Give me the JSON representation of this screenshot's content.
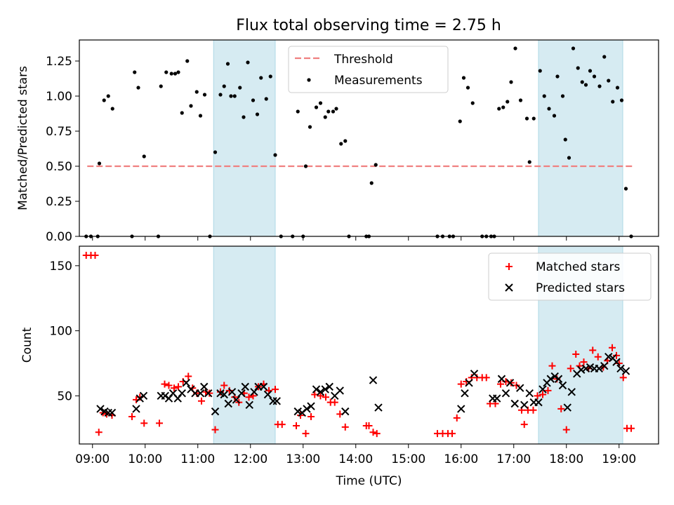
{
  "title": "Flux total observing time = 2.75 h",
  "chart_data": [
    {
      "type": "scatter",
      "ylabel": "Matched/Predicted stars",
      "xlim": [
        8.75,
        19.75
      ],
      "ylim": [
        0.0,
        1.4
      ],
      "yticks": [
        0.0,
        0.25,
        0.5,
        0.75,
        1.0,
        1.25
      ],
      "ytick_labels": [
        "0.00",
        "0.25",
        "0.50",
        "0.75",
        "1.00",
        "1.25"
      ],
      "grid": false,
      "legend_position": "upper-center",
      "shaded_intervals": [
        [
          11.3,
          12.47
        ],
        [
          17.47,
          19.07
        ]
      ],
      "threshold": {
        "name": "Threshold",
        "value": 0.5,
        "x_range": [
          8.9,
          19.25
        ],
        "color": "#f08080"
      },
      "series": [
        {
          "name": "Measurements",
          "color": "#000000",
          "x": [
            8.88,
            8.97,
            9.1,
            9.13,
            9.22,
            9.3,
            9.38,
            9.75,
            9.8,
            9.87,
            9.98,
            10.25,
            10.3,
            10.4,
            10.5,
            10.57,
            10.63,
            10.7,
            10.8,
            10.87,
            10.98,
            11.05,
            11.13,
            11.23,
            11.33,
            11.43,
            11.5,
            11.57,
            11.63,
            11.7,
            11.8,
            11.87,
            11.95,
            12.05,
            12.13,
            12.2,
            12.3,
            12.38,
            12.47,
            12.58,
            12.8,
            12.9,
            13.0,
            13.05,
            13.13,
            13.25,
            13.33,
            13.42,
            13.48,
            13.57,
            13.63,
            13.72,
            13.8,
            13.87,
            14.2,
            14.25,
            14.3,
            14.38,
            15.55,
            15.65,
            15.78,
            15.85,
            15.98,
            16.05,
            16.13,
            16.22,
            16.4,
            16.48,
            16.57,
            16.63,
            16.72,
            16.8,
            16.88,
            16.95,
            17.03,
            17.13,
            17.25,
            17.3,
            17.38,
            17.5,
            17.58,
            17.67,
            17.77,
            17.83,
            17.93,
            17.98,
            18.05,
            18.13,
            18.22,
            18.3,
            18.37,
            18.45,
            18.53,
            18.63,
            18.72,
            18.8,
            18.88,
            18.97,
            19.05,
            19.13,
            19.23
          ],
          "y": [
            0.0,
            0.0,
            0.0,
            0.52,
            0.97,
            1.0,
            0.91,
            0.0,
            1.17,
            1.06,
            0.57,
            0.0,
            1.07,
            1.17,
            1.16,
            1.16,
            1.17,
            0.88,
            1.25,
            0.93,
            1.03,
            0.86,
            1.01,
            0.0,
            0.6,
            1.01,
            1.07,
            1.23,
            1.0,
            1.0,
            1.06,
            0.85,
            1.24,
            0.97,
            0.87,
            1.13,
            0.98,
            1.14,
            0.58,
            0.0,
            0.0,
            0.89,
            0.0,
            0.5,
            0.78,
            0.92,
            0.95,
            0.85,
            0.89,
            0.89,
            0.91,
            0.66,
            0.68,
            0.0,
            0.0,
            0.0,
            0.38,
            0.51,
            0.0,
            0.0,
            0.0,
            0.0,
            0.82,
            1.13,
            1.06,
            0.95,
            0.0,
            0.0,
            0.0,
            0.0,
            0.91,
            0.92,
            0.96,
            1.1,
            1.34,
            0.97,
            0.84,
            0.53,
            0.84,
            1.18,
            1.0,
            0.91,
            0.86,
            1.14,
            1.0,
            0.69,
            0.56,
            1.34,
            1.2,
            1.1,
            1.08,
            1.18,
            1.14,
            1.07,
            1.28,
            1.11,
            0.96,
            1.06,
            0.97,
            0.34,
            0.0
          ]
        }
      ]
    },
    {
      "type": "scatter",
      "xlabel": "Time (UTC)",
      "ylabel": "Count",
      "xlim": [
        8.75,
        19.75
      ],
      "ylim": [
        13,
        165
      ],
      "yticks": [
        50,
        100,
        150
      ],
      "ytick_labels": [
        "50",
        "100",
        "150"
      ],
      "xticks": [
        9,
        10,
        11,
        12,
        13,
        14,
        15,
        16,
        17,
        18,
        19
      ],
      "xtick_labels": [
        "09:00",
        "10:00",
        "11:00",
        "12:00",
        "13:00",
        "14:00",
        "15:00",
        "16:00",
        "17:00",
        "18:00",
        "19:00"
      ],
      "grid": false,
      "legend_position": "upper-right",
      "shaded_intervals": [
        [
          11.3,
          12.47
        ],
        [
          17.47,
          19.07
        ]
      ],
      "series": [
        {
          "name": "Matched stars",
          "marker": "plus",
          "color": "#ff0000",
          "x": [
            8.88,
            8.97,
            9.05,
            9.12,
            9.2,
            9.27,
            9.37,
            9.75,
            9.83,
            9.9,
            9.98,
            10.27,
            10.37,
            10.45,
            10.55,
            10.63,
            10.72,
            10.82,
            10.9,
            10.98,
            11.07,
            11.15,
            11.22,
            11.33,
            11.43,
            11.5,
            11.6,
            11.7,
            11.78,
            11.88,
            11.97,
            12.05,
            12.15,
            12.25,
            12.35,
            12.47,
            12.52,
            12.6,
            12.87,
            12.95,
            13.05,
            13.15,
            13.22,
            13.33,
            13.43,
            13.52,
            13.6,
            13.7,
            13.8,
            14.2,
            14.25,
            14.33,
            14.4,
            15.55,
            15.65,
            15.75,
            15.83,
            15.92,
            16.0,
            16.1,
            16.2,
            16.3,
            16.4,
            16.48,
            16.55,
            16.65,
            16.75,
            16.85,
            16.95,
            17.05,
            17.15,
            17.2,
            17.27,
            17.37,
            17.45,
            17.55,
            17.65,
            17.73,
            17.82,
            17.9,
            18.0,
            18.08,
            18.18,
            18.25,
            18.33,
            18.42,
            18.5,
            18.6,
            18.7,
            18.78,
            18.87,
            18.95,
            19.0,
            19.08,
            19.15,
            19.23
          ],
          "y": [
            158,
            158,
            158,
            22,
            37,
            36,
            35,
            34,
            47,
            49,
            29,
            29,
            59,
            58,
            56,
            57,
            61,
            65,
            56,
            52,
            46,
            53,
            52,
            24,
            53,
            58,
            54,
            49,
            45,
            52,
            49,
            50,
            57,
            59,
            54,
            55,
            28,
            28,
            27,
            35,
            21,
            34,
            51,
            50,
            49,
            45,
            45,
            36,
            26,
            27,
            27,
            22,
            21,
            21,
            21,
            21,
            21,
            33,
            59,
            61,
            64,
            64,
            64,
            64,
            44,
            44,
            59,
            61,
            60,
            58,
            39,
            28,
            39,
            39,
            50,
            51,
            54,
            73,
            63,
            40,
            24,
            71,
            82,
            73,
            76,
            71,
            85,
            80,
            72,
            77,
            87,
            81,
            75,
            64,
            25,
            25
          ]
        },
        {
          "name": "Predicted stars",
          "marker": "x",
          "color": "#000000",
          "x": [
            9.15,
            9.23,
            9.3,
            9.37,
            9.83,
            9.9,
            9.97,
            10.3,
            10.38,
            10.45,
            10.53,
            10.62,
            10.7,
            10.78,
            10.87,
            10.95,
            11.05,
            11.12,
            11.2,
            11.33,
            11.43,
            11.5,
            11.58,
            11.65,
            11.73,
            11.83,
            11.9,
            11.98,
            12.07,
            12.15,
            12.25,
            12.33,
            12.43,
            12.5,
            12.9,
            12.98,
            13.07,
            13.15,
            13.25,
            13.33,
            13.42,
            13.5,
            13.6,
            13.7,
            13.8,
            14.33,
            14.43,
            16.0,
            16.07,
            16.15,
            16.25,
            16.6,
            16.68,
            16.77,
            16.85,
            16.93,
            17.02,
            17.12,
            17.2,
            17.3,
            17.38,
            17.47,
            17.55,
            17.63,
            17.7,
            17.78,
            17.85,
            17.93,
            18.02,
            18.1,
            18.2,
            18.28,
            18.37,
            18.45,
            18.53,
            18.62,
            18.72,
            18.8,
            18.88,
            18.95,
            19.03,
            19.13
          ],
          "y": [
            40,
            38,
            37,
            37,
            40,
            48,
            50,
            50,
            50,
            48,
            52,
            48,
            52,
            60,
            55,
            52,
            52,
            57,
            52,
            38,
            52,
            51,
            44,
            53,
            47,
            52,
            57,
            43,
            53,
            57,
            57,
            51,
            46,
            46,
            38,
            37,
            40,
            42,
            55,
            53,
            55,
            57,
            50,
            54,
            38,
            62,
            41,
            40,
            52,
            60,
            67,
            48,
            48,
            63,
            52,
            60,
            44,
            56,
            43,
            52,
            45,
            45,
            55,
            60,
            63,
            65,
            63,
            58,
            41,
            53,
            67,
            70,
            71,
            72,
            71,
            71,
            73,
            80,
            79,
            76,
            71,
            69
          ]
        }
      ]
    }
  ]
}
